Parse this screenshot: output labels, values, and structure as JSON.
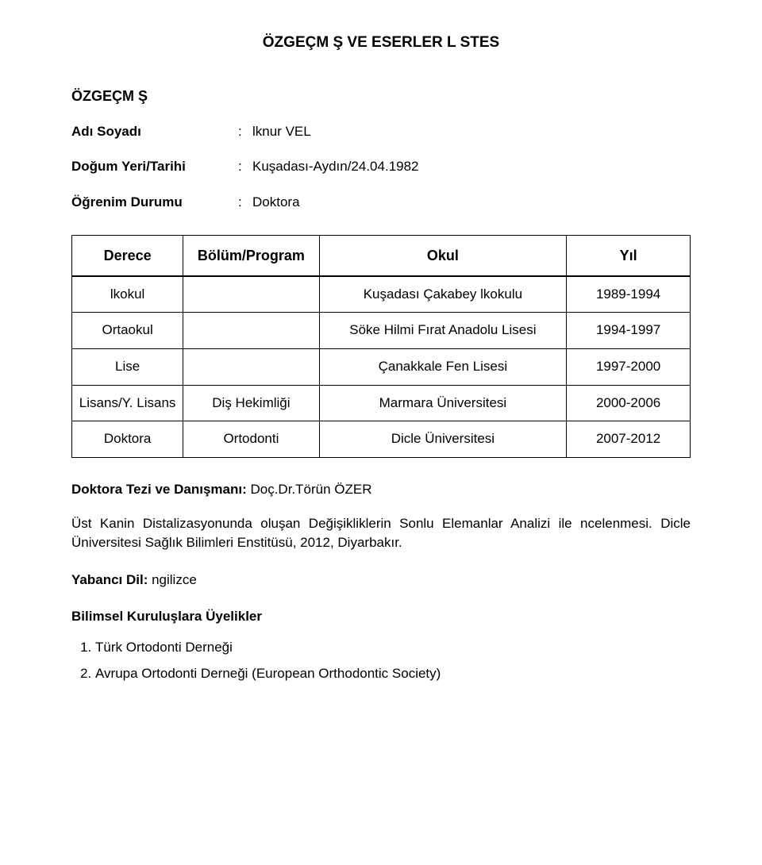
{
  "title": "ÖZGEÇM Ş VE ESERLER L STES",
  "subhead": "ÖZGEÇM Ş",
  "fields": {
    "name_label": "Adı Soyadı",
    "name_value": "lknur VEL",
    "dob_label": "Doğum Yeri/Tarihi",
    "dob_value": "Kuşadası-Aydın/24.04.1982",
    "edu_label": "Öğrenim Durumu",
    "edu_value": "Doktora"
  },
  "edu_table": {
    "headers": [
      "Derece",
      "Bölüm/Program",
      "Okul",
      "Yıl"
    ],
    "rows": [
      [
        "lkokul",
        "",
        "Kuşadası Çakabey lkokulu",
        "1989-1994"
      ],
      [
        "Ortaokul",
        "",
        "Söke Hilmi Fırat Anadolu Lisesi",
        "1994-1997"
      ],
      [
        "Lise",
        "",
        "Çanakkale Fen Lisesi",
        "1997-2000"
      ],
      [
        "Lisans/Y. Lisans",
        "Diş Hekimliği",
        "Marmara Üniversitesi",
        "2000-2006"
      ],
      [
        "Doktora",
        "Ortodonti",
        "Dicle Üniversitesi",
        "2007-2012"
      ]
    ]
  },
  "thesis": {
    "label": "Doktora Tezi ve Danışmanı: ",
    "value": "Doç.Dr.Törün ÖZER"
  },
  "thesis_desc": "Üst Kanin Distalizasyonunda oluşan Değişikliklerin Sonlu Elemanlar Analizi ile ncelenmesi. Dicle Üniversitesi Sağlık Bilimleri Enstitüsü, 2012, Diyarbakır.",
  "lang_label": "Yabancı Dil: ",
  "lang_value": "ngilizce",
  "memberships_head": "Bilimsel Kuruluşlara Üyelikler",
  "memberships": [
    "Türk Ortodonti Derneği",
    "Avrupa Ortodonti Derneği (European Orthodontic Society)"
  ]
}
